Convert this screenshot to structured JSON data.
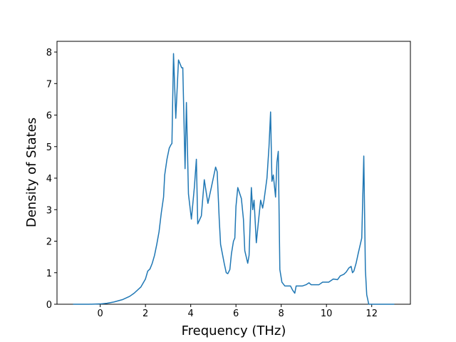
{
  "chart_data": {
    "type": "line",
    "xlabel": "Frequency (THz)",
    "ylabel": "Density of States",
    "xlim": [
      -1.91,
      13.71
    ],
    "ylim": [
      0,
      8.34
    ],
    "xticks": [
      0,
      2,
      4,
      6,
      8,
      10,
      12
    ],
    "yticks": [
      0,
      1,
      2,
      3,
      4,
      5,
      6,
      7,
      8
    ],
    "grid": false,
    "series": [
      {
        "color": "#1f77b4",
        "x": [
          -1.2,
          -0.5,
          0,
          0.3,
          0.6,
          1.0,
          1.3,
          1.5,
          1.8,
          2.0,
          2.1,
          2.2,
          2.3,
          2.4,
          2.5,
          2.6,
          2.7,
          2.8,
          2.85,
          2.95,
          3.05,
          3.12,
          3.17,
          3.24,
          3.34,
          3.46,
          3.6,
          3.65,
          3.75,
          3.81,
          3.9,
          4.03,
          4.16,
          4.25,
          4.31,
          4.47,
          4.6,
          4.76,
          4.91,
          5.1,
          5.17,
          5.26,
          5.32,
          5.48,
          5.57,
          5.64,
          5.73,
          5.8,
          5.89,
          5.95,
          6.0,
          6.08,
          6.24,
          6.33,
          6.39,
          6.52,
          6.58,
          6.68,
          6.74,
          6.8,
          6.9,
          6.99,
          7.09,
          7.18,
          7.24,
          7.37,
          7.46,
          7.53,
          7.59,
          7.65,
          7.75,
          7.81,
          7.87,
          7.94,
          8.03,
          8.16,
          8.41,
          8.5,
          8.6,
          8.66,
          8.94,
          9.1,
          9.23,
          9.32,
          9.67,
          9.83,
          10.1,
          10.3,
          10.49,
          10.61,
          10.77,
          10.87,
          10.99,
          11.09,
          11.15,
          11.21,
          11.31,
          11.4,
          11.56,
          11.65,
          11.72,
          11.78,
          11.87,
          13.0
        ],
        "values": [
          0,
          0,
          0.01,
          0.03,
          0.07,
          0.15,
          0.25,
          0.35,
          0.55,
          0.8,
          1.05,
          1.12,
          1.3,
          1.55,
          1.9,
          2.3,
          2.9,
          3.4,
          4.1,
          4.6,
          4.95,
          5.05,
          5.1,
          7.95,
          5.9,
          7.75,
          7.5,
          7.5,
          4.3,
          6.4,
          3.5,
          2.7,
          3.7,
          4.6,
          2.55,
          2.8,
          3.95,
          3.2,
          3.7,
          4.35,
          4.2,
          2.7,
          1.9,
          1.3,
          1.0,
          0.97,
          1.1,
          1.6,
          2.0,
          2.1,
          3.1,
          3.7,
          3.35,
          2.7,
          1.7,
          1.3,
          1.55,
          3.7,
          3.0,
          3.3,
          1.95,
          2.6,
          3.3,
          3.05,
          3.3,
          4.0,
          5.0,
          6.1,
          3.9,
          4.1,
          3.4,
          4.5,
          4.85,
          1.1,
          0.7,
          0.58,
          0.58,
          0.45,
          0.35,
          0.58,
          0.58,
          0.62,
          0.68,
          0.62,
          0.62,
          0.7,
          0.7,
          0.8,
          0.78,
          0.9,
          0.95,
          1.02,
          1.15,
          1.2,
          1.0,
          1.05,
          1.3,
          1.6,
          2.1,
          4.7,
          1.1,
          0.3,
          0,
          0
        ]
      }
    ]
  }
}
